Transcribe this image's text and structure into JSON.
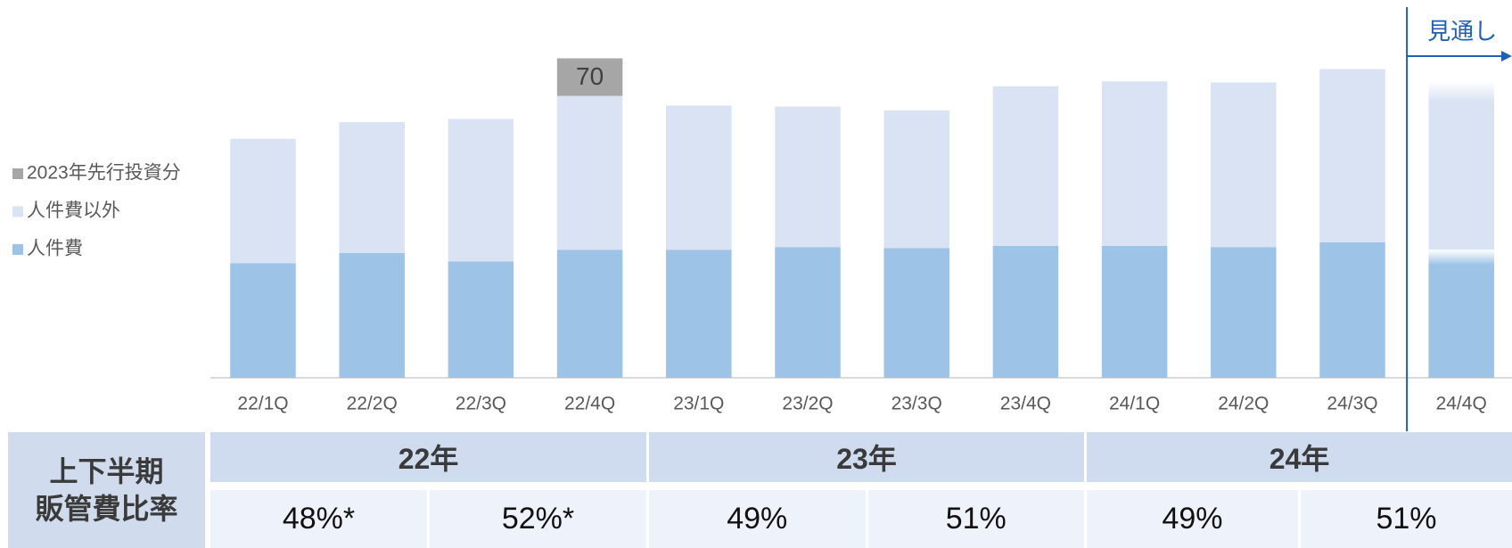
{
  "chart_data": {
    "type": "stacked_bar",
    "categories": [
      "22/1Q",
      "22/2Q",
      "22/3Q",
      "22/4Q",
      "23/1Q",
      "23/2Q",
      "23/3Q",
      "23/4Q",
      "24/1Q",
      "24/2Q",
      "24/3Q",
      "24/4Q"
    ],
    "series": [
      {
        "name": "人件費",
        "color": "#9dc3e6",
        "values": [
          214,
          233,
          217,
          239,
          239,
          244,
          242,
          246,
          246,
          244,
          253,
          239
        ]
      },
      {
        "name": "人件費以外",
        "color": "#dae3f3",
        "values": [
          232,
          244,
          266,
          287,
          269,
          262,
          257,
          298,
          307,
          307,
          323,
          314
        ]
      },
      {
        "name": "2023年先行投資分",
        "color": "#a6a6a6",
        "show_values": true,
        "values": [
          null,
          null,
          null,
          70,
          null,
          null,
          null,
          null,
          null,
          null,
          null,
          null
        ]
      }
    ],
    "ylim": [
      0,
      650
    ],
    "annotation": {
      "text": "見通し",
      "category": "24/4Q",
      "color": "#1f5fb4"
    }
  },
  "table": {
    "row_header": [
      "上下半期",
      "販管費比率"
    ],
    "years": [
      "22年",
      "23年",
      "24年"
    ],
    "ratios": [
      "48%*",
      "52%*",
      "49%",
      "51%",
      "49%",
      "51%"
    ]
  }
}
